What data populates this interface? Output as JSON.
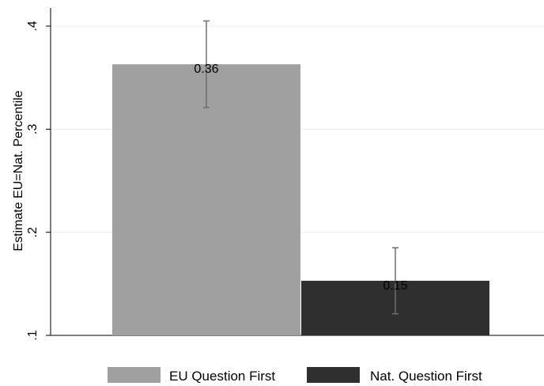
{
  "chart_data": {
    "type": "bar",
    "title": "",
    "xlabel": "",
    "ylabel": "Estimate EU=Nat. Percentile",
    "ylim": [
      0.1,
      0.4
    ],
    "y_ticks": [
      0.1,
      0.2,
      0.3,
      0.4
    ],
    "y_tick_labels": [
      ".1",
      ".2",
      ".3",
      ".4"
    ],
    "grid": true,
    "legend_position": "bottom",
    "series": [
      {
        "name": "EU Question First",
        "value": 0.363,
        "label": "0.36",
        "ci": [
          0.321,
          0.405
        ],
        "color": "#a0a0a0"
      },
      {
        "name": "Nat. Question First",
        "value": 0.153,
        "label": "0.15",
        "ci": [
          0.121,
          0.185
        ],
        "color": "#2f2f2f"
      }
    ]
  }
}
